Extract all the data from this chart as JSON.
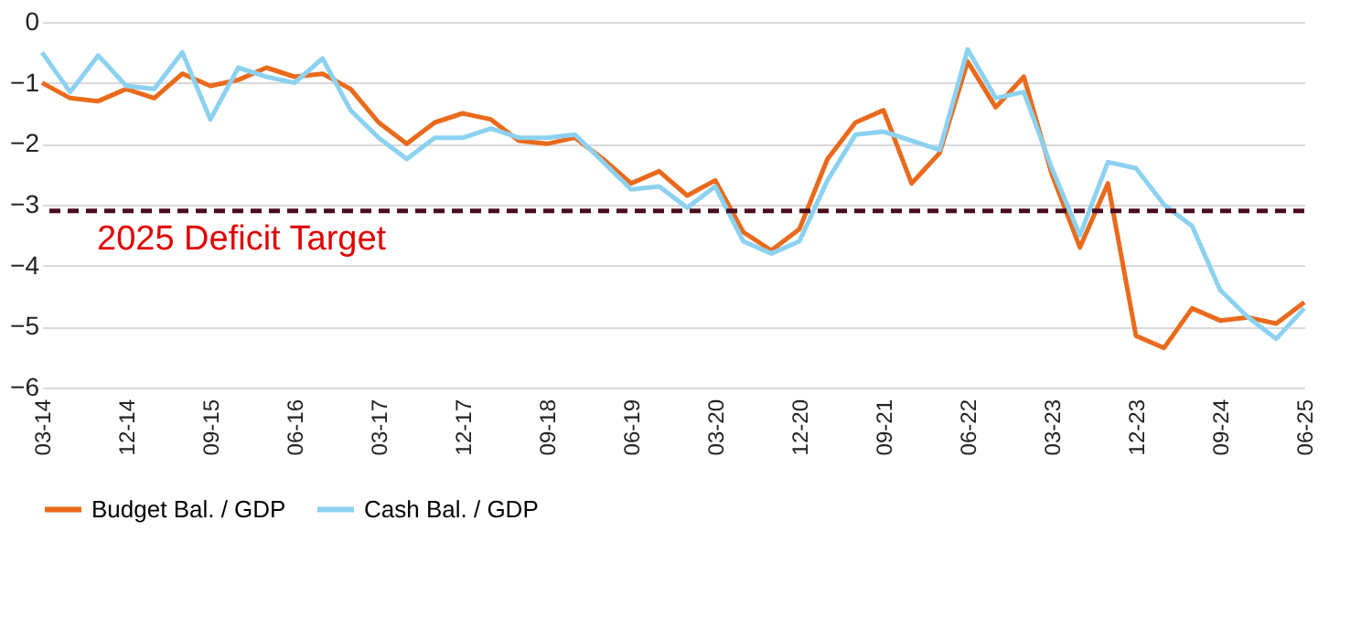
{
  "chart_data": {
    "type": "line",
    "categories": [
      "03-14",
      null,
      null,
      "12-14",
      null,
      null,
      "09-15",
      null,
      null,
      "06-16",
      null,
      null,
      "03-17",
      null,
      null,
      "12-17",
      null,
      null,
      "09-18",
      null,
      null,
      "06-19",
      null,
      null,
      "03-20",
      null,
      null,
      "12-20",
      null,
      null,
      "09-21",
      null,
      null,
      "06-22",
      null,
      null,
      "03-23",
      null,
      null,
      "12-23",
      null,
      null,
      "09-24",
      null,
      null,
      "06-25"
    ],
    "series": [
      {
        "name": "Budget Bal. / GDP",
        "color": "#ea6a1c",
        "values": [
          -1.0,
          -1.25,
          -1.3,
          -1.1,
          -1.25,
          -0.85,
          -1.05,
          -0.95,
          -0.75,
          -0.9,
          -0.85,
          -1.1,
          -1.65,
          -2.0,
          -1.65,
          -1.5,
          -1.6,
          -1.95,
          -2.0,
          -1.9,
          -2.25,
          -2.65,
          -2.45,
          -2.85,
          -2.6,
          -3.45,
          -3.75,
          -3.4,
          -2.25,
          -1.65,
          -1.45,
          -2.65,
          -2.15,
          -0.65,
          -1.4,
          -0.9,
          -2.5,
          -3.7,
          -2.65,
          -5.15,
          -5.35,
          -4.7,
          -4.9,
          -4.85,
          -4.95,
          -4.6
        ]
      },
      {
        "name": "Cash Bal. / GDP",
        "color": "#8cd2f0",
        "values": [
          -0.5,
          -1.15,
          -0.55,
          -1.05,
          -1.1,
          -0.5,
          -1.6,
          -0.75,
          -0.9,
          -1.0,
          -0.6,
          -1.45,
          -1.9,
          -2.25,
          -1.9,
          -1.9,
          -1.75,
          -1.9,
          -1.9,
          -1.85,
          -2.3,
          -2.75,
          -2.7,
          -3.05,
          -2.7,
          -3.6,
          -3.8,
          -3.6,
          -2.6,
          -1.85,
          -1.8,
          -1.95,
          -2.1,
          -0.45,
          -1.25,
          -1.15,
          -2.4,
          -3.5,
          -2.3,
          -2.4,
          -3.0,
          -3.35,
          -4.4,
          -4.85,
          -5.2,
          -4.7
        ]
      }
    ],
    "ylim": [
      -6,
      0
    ],
    "yticks": [
      -6,
      -5,
      -4,
      -3,
      -2,
      -1,
      0
    ],
    "ref_lines": [
      {
        "axis": "y",
        "value": -3.1,
        "label": "2025 Deficit Target",
        "color": "#4a0d1e",
        "line_style": "dashed"
      }
    ],
    "grid": "y",
    "legend": "bottom",
    "line_style": "solid",
    "marker": "none"
  }
}
